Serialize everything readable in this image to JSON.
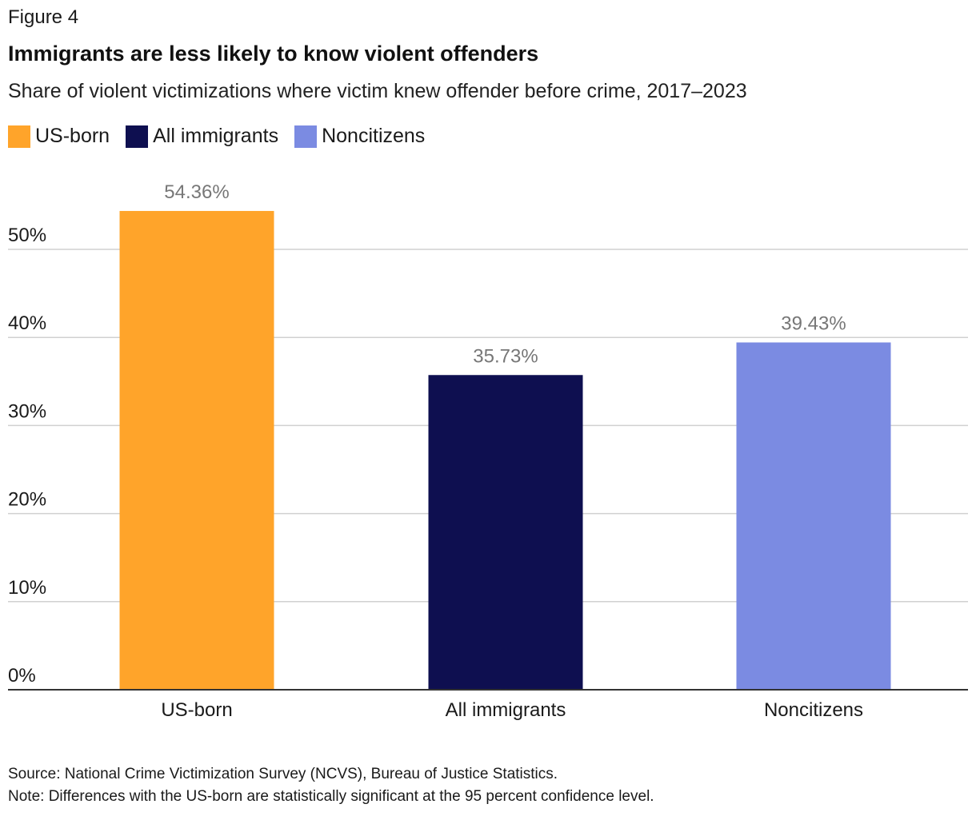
{
  "figure_label": "Figure 4",
  "chart_data": {
    "type": "bar",
    "title": "Immigrants are less likely to know violent offenders",
    "subtitle": "Share of violent victimizations where victim knew offender before crime, 2017–2023",
    "categories": [
      "US-born",
      "All immigrants",
      "Noncitizens"
    ],
    "values": [
      54.36,
      35.73,
      39.43
    ],
    "data_labels": [
      "54.36%",
      "35.73%",
      "39.43%"
    ],
    "colors": [
      "#FFA42A",
      "#0E0F50",
      "#7B8BE2"
    ],
    "legend": [
      {
        "label": "US-born",
        "color": "#FFA42A"
      },
      {
        "label": "All immigrants",
        "color": "#0E0F50"
      },
      {
        "label": "Noncitizens",
        "color": "#7B8BE2"
      }
    ],
    "legend_position": "top-left",
    "ylim": [
      0,
      55
    ],
    "y_ticks": [
      0,
      10,
      20,
      30,
      40,
      50
    ],
    "y_tick_labels": [
      "0%",
      "10%",
      "20%",
      "30%",
      "40%",
      "50%"
    ],
    "grid": true
  },
  "footer": {
    "source": "Source: National Crime Victimization Survey (NCVS), Bureau of Justice Statistics.",
    "note": "Note: Differences with the US-born are statistically significant at the 95 percent confidence level."
  }
}
